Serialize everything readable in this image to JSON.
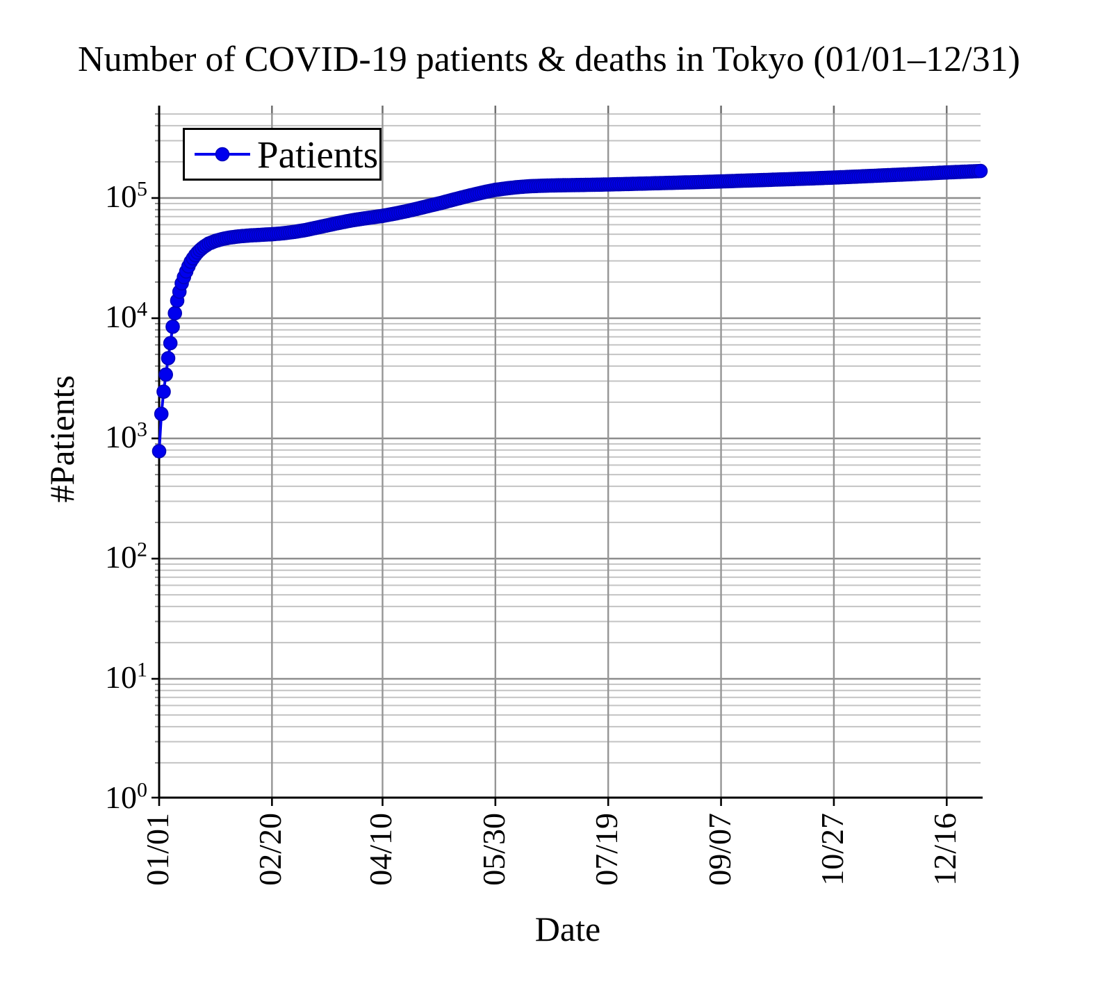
{
  "chart_data": {
    "type": "line",
    "title": "Number of COVID-19 patients & deaths in Tokyo (01/01–12/31)",
    "xlabel": "Date",
    "ylabel": "#Patients",
    "x_axis": {
      "tick_labels": [
        "01/01",
        "02/20",
        "04/10",
        "05/30",
        "07/19",
        "09/07",
        "10/27",
        "12/16"
      ],
      "tick_days": [
        0,
        50,
        99,
        149,
        199,
        249,
        299,
        349
      ],
      "range_days": [
        0,
        364
      ],
      "grid": true
    },
    "y_axis": {
      "scale": "log10",
      "tick_exponents": [
        0,
        1,
        2,
        3,
        4,
        5
      ],
      "tick_label_base": "10",
      "range": [
        1,
        590000
      ],
      "major_grid": true,
      "minor_grid": true
    },
    "legend": {
      "position": "top-left",
      "entries": [
        {
          "label": "Patients",
          "marker": "filled-circle",
          "color": "#0000ee"
        }
      ]
    },
    "series": [
      {
        "name": "Patients",
        "color": "#0000ee",
        "marker_edge_color": "#0000bb",
        "marker": "circle",
        "sampling": "daily",
        "anchors_day_value": [
          [
            0,
            783
          ],
          [
            1,
            1600
          ],
          [
            2,
            2450
          ],
          [
            3,
            3400
          ],
          [
            4,
            4650
          ],
          [
            5,
            6200
          ],
          [
            6,
            8500
          ],
          [
            7,
            11000
          ],
          [
            8,
            14000
          ],
          [
            9,
            16600
          ],
          [
            10,
            19500
          ],
          [
            11,
            22000
          ],
          [
            12,
            24500
          ],
          [
            13,
            27000
          ],
          [
            14,
            29500
          ],
          [
            15,
            31500
          ],
          [
            16,
            33500
          ],
          [
            17,
            35200
          ],
          [
            18,
            36800
          ],
          [
            19,
            38200
          ],
          [
            20,
            39500
          ],
          [
            22,
            41800
          ],
          [
            25,
            44000
          ],
          [
            28,
            45600
          ],
          [
            31,
            46800
          ],
          [
            35,
            47900
          ],
          [
            40,
            48800
          ],
          [
            45,
            49400
          ],
          [
            50,
            50000
          ],
          [
            55,
            50900
          ],
          [
            60,
            52300
          ],
          [
            65,
            54200
          ],
          [
            70,
            56800
          ],
          [
            75,
            59500
          ],
          [
            80,
            62300
          ],
          [
            85,
            65000
          ],
          [
            90,
            67300
          ],
          [
            95,
            69300
          ],
          [
            99,
            71000
          ],
          [
            105,
            74500
          ],
          [
            110,
            78000
          ],
          [
            115,
            82000
          ],
          [
            120,
            86500
          ],
          [
            125,
            91000
          ],
          [
            130,
            96500
          ],
          [
            135,
            102000
          ],
          [
            140,
            107500
          ],
          [
            145,
            113000
          ],
          [
            149,
            117000
          ],
          [
            155,
            121000
          ],
          [
            160,
            123800
          ],
          [
            165,
            125500
          ],
          [
            170,
            126600
          ],
          [
            175,
            127300
          ],
          [
            180,
            127800
          ],
          [
            185,
            128200
          ],
          [
            190,
            128700
          ],
          [
            195,
            129200
          ],
          [
            199,
            129700
          ],
          [
            210,
            131200
          ],
          [
            220,
            132700
          ],
          [
            230,
            134200
          ],
          [
            240,
            135800
          ],
          [
            249,
            137500
          ],
          [
            260,
            139600
          ],
          [
            270,
            141600
          ],
          [
            280,
            143700
          ],
          [
            290,
            145800
          ],
          [
            299,
            148000
          ],
          [
            310,
            151000
          ],
          [
            320,
            154000
          ],
          [
            330,
            157000
          ],
          [
            340,
            160200
          ],
          [
            349,
            163300
          ],
          [
            355,
            165000
          ],
          [
            360,
            166500
          ],
          [
            364,
            167800
          ]
        ]
      }
    ],
    "colors": {
      "axis": "#000000",
      "major_grid": "#8d8d8d",
      "minor_grid": "#c3c3c3",
      "vertical_grid": "#959595",
      "top_tick": "#6f6f6f",
      "series_blue": "#0000ee"
    }
  }
}
